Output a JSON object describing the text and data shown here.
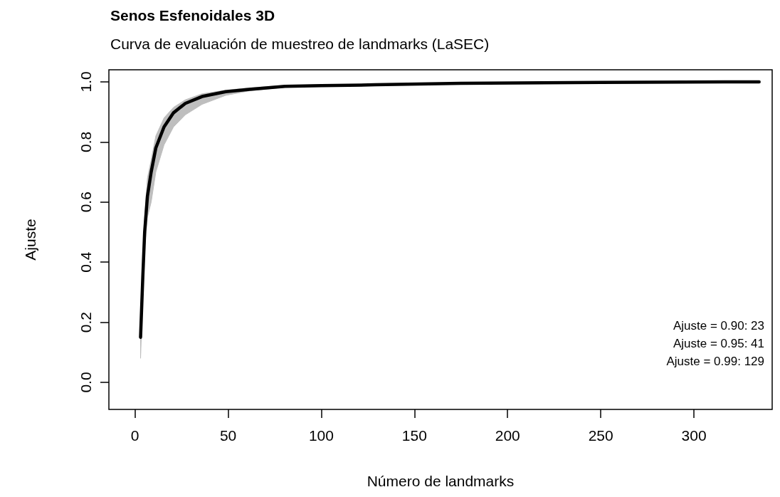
{
  "chart_data": {
    "type": "line",
    "title": "Senos Esfenoidales 3D",
    "subtitle": "Curva de evaluación de muestreo de landmarks (LaSEC)",
    "xlabel": "Número de landmarks",
    "ylabel": "Ajuste",
    "series": [
      {
        "color": "#000000",
        "x": [
          3,
          4.2,
          5.2,
          6.7,
          8.7,
          11.2,
          15.6,
          20.7,
          27,
          36,
          48.7,
          61.5,
          80.5,
          100,
          129,
          175,
          250,
          335
        ],
        "values": [
          0.15,
          0.35,
          0.5,
          0.62,
          0.7,
          0.78,
          0.85,
          0.897,
          0.928,
          0.951,
          0.967,
          0.975,
          0.985,
          0.987,
          0.99,
          0.995,
          0.998,
          1.0
        ],
        "lower": [
          0.08,
          0.3,
          0.45,
          0.55,
          0.6,
          0.7,
          0.79,
          0.85,
          0.89,
          0.925,
          0.955,
          0.97,
          0.982,
          0.985,
          0.99,
          0.995,
          0.998,
          1.0
        ],
        "upper": [
          0.2,
          0.4,
          0.55,
          0.68,
          0.74,
          0.82,
          0.88,
          0.915,
          0.94,
          0.96,
          0.972,
          0.98,
          0.988,
          0.99,
          0.99,
          0.995,
          0.998,
          1.0
        ]
      }
    ],
    "xlim": [
      -14,
      342
    ],
    "ylim": [
      -0.09,
      1.04
    ],
    "xticks": [
      0,
      50,
      100,
      150,
      200,
      250,
      300
    ],
    "yticks": [
      {
        "value": 0,
        "label": "0.0"
      },
      {
        "value": 0.2,
        "label": "0.2"
      },
      {
        "value": 0.4,
        "label": "0.4"
      },
      {
        "value": 0.6,
        "label": "0.6"
      },
      {
        "value": 0.8,
        "label": "0.8"
      },
      {
        "value": 1,
        "label": "1.0"
      }
    ],
    "grid": false,
    "marker": "none",
    "line_style": "solid",
    "annotations": [
      "Ajuste = 0.90: 23",
      "Ajuste = 0.95: 41",
      "Ajuste = 0.99: 129"
    ]
  }
}
